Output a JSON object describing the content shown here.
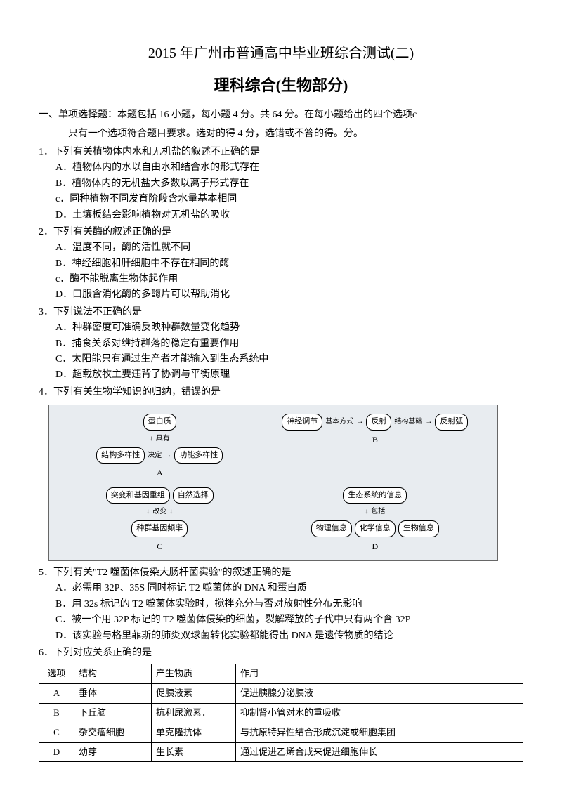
{
  "title": "2015 年广州市普通高中毕业班综合测试(二)",
  "subtitle": "理科综合(生物部分)",
  "intro1": "一、单项选择题：本题包括 16 小题，每小题 4 分。共 64 分。在每小题给出的四个选项c",
  "intro2": "只有一个选项符合题目要求。选对的得 4 分，选错或不答的得。分。",
  "q1": {
    "text": "1．下列有关植物体内水和无机盐的叙述不正确的是",
    "a": "A．植物体内的水以自由水和结合水的形式存在",
    "b": "B．植物体内的无机盐大多数以离子形式存在",
    "c": "c．同种植物不同发育阶段含水量基本相同",
    "d": "D．土壤板结会影响植物对无机盐的吸收"
  },
  "q2": {
    "text": "2．下列有关酶的叙述正确的是",
    "a": "A．温度不同，酶的活性就不同",
    "b": "B．神经细胞和肝细胞中不存在相同的酶",
    "c": "c．酶不能脱离生物体起作用",
    "d": "D．口服含消化酶的多酶片可以帮助消化"
  },
  "q3": {
    "text": "3．下列说法不正确的是",
    "a": "A．种群密度可准确反映种群数量变化趋势",
    "b": "B．捕食关系对维持群落的稳定有重要作用",
    "c": "C．太阳能只有通过生产者才能输入到生态系统中",
    "d": "D．超载放牧主要违背了协调与平衡原理"
  },
  "q4": {
    "text": "4．下列有关生物学知识的归纳，错误的是"
  },
  "diagram": {
    "a": {
      "protein": "蛋白质",
      "has": "具有",
      "struct": "结构多样性",
      "decide": "决定",
      "func": "功能多样性",
      "label": "A"
    },
    "b": {
      "neural": "神经调节",
      "basic": "基本方式",
      "reflex": "反射",
      "struct_basis": "结构基础",
      "arc": "反射弧",
      "label": "B"
    },
    "c": {
      "mutation": "突变和基因重组",
      "selection": "自然选择",
      "change": "改变",
      "freq": "种群基因频率",
      "label": "C"
    },
    "d": {
      "eco": "生态系统的信息",
      "include": "包括",
      "phys": "物理信息",
      "chem": "化学信息",
      "bio": "生物信息",
      "label": "D"
    }
  },
  "q5": {
    "text": "5．下列有关\"T2 噬菌体侵染大肠杆菌实验\"的叙述正确的是",
    "a": "A．必需用 32P、35S 同时标记 T2 噬菌体的 DNA 和蛋白质",
    "b": "B．用 32s 标记的 T2 噬菌体实验时，搅拌充分与否对放射性分布无影响",
    "c": "C．被一个用 32P 标记的 T2 噬菌体侵染的细菌，裂解释放的子代中只有两个含 32P",
    "d": "D．该实验与格里菲斯的肺炎双球菌转化实验都能得出 DNA 是遗传物质的结论"
  },
  "q6": {
    "text": "6．下列对应关系正确的是",
    "headers": [
      "选项",
      "结构",
      "产生物质",
      "作用"
    ],
    "rows": [
      [
        "A",
        "垂体",
        "促胰液素",
        "促进胰腺分泌胰液"
      ],
      [
        "B",
        "下丘脑",
        "抗利尿激素．",
        "抑制肾小管对水的重吸收"
      ],
      [
        "C",
        "杂交瘤细胞",
        "单克隆抗体",
        "与抗原特异性结合形成沉淀或细胞集团"
      ],
      [
        "D",
        "幼芽",
        "生长素",
        "通过促进乙烯合成来促进细胞伸长"
      ]
    ]
  }
}
